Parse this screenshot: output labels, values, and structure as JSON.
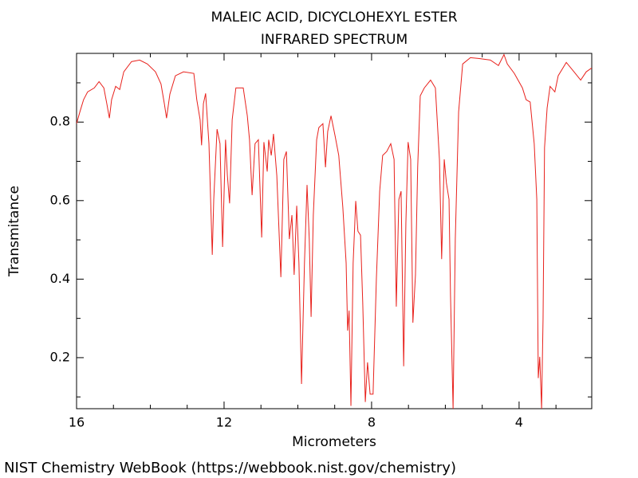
{
  "chart_data": {
    "type": "line",
    "title": "MALEIC ACID, DICYCLOHEXYL ESTER",
    "subtitle": "INFRARED SPECTRUM",
    "xlabel": "Micrometers",
    "ylabel": "Transmitance",
    "color": "#e8211c",
    "xlim": [
      16,
      2.03
    ],
    "ylim": [
      0.07,
      0.975
    ],
    "xticks": [
      16,
      12,
      8,
      4
    ],
    "x_minor_ticks": [
      15,
      14,
      13,
      11,
      10,
      9,
      7,
      6,
      5,
      3
    ],
    "yticks": [
      0.2,
      0.4,
      0.6,
      0.8
    ],
    "y_minor_ticks": [
      0.1,
      0.3,
      0.5,
      0.7,
      0.9
    ],
    "x": [
      16,
      15.91,
      15.81,
      15.7,
      15.52,
      15.39,
      15.26,
      15.18,
      15.11,
      15.05,
      14.94,
      14.83,
      14.72,
      14.51,
      14.29,
      14.08,
      13.86,
      13.71,
      13.62,
      13.56,
      13.47,
      13.32,
      13.1,
      12.82,
      12.74,
      12.65,
      12.61,
      12.56,
      12.5,
      12.41,
      12.32,
      12.28,
      12.19,
      12.11,
      12.04,
      11.96,
      11.91,
      11.85,
      11.78,
      11.68,
      11.48,
      11.37,
      11.31,
      11.24,
      11.16,
      11.07,
      10.98,
      10.92,
      10.83,
      10.79,
      10.72,
      10.66,
      10.57,
      10.46,
      10.38,
      10.31,
      10.23,
      10.16,
      10.1,
      10.03,
      9.97,
      9.9,
      9.82,
      9.75,
      9.69,
      9.64,
      9.58,
      9.49,
      9.43,
      9.32,
      9.25,
      9.19,
      9.1,
      8.99,
      8.89,
      8.78,
      8.69,
      8.65,
      8.61,
      8.56,
      8.5,
      8.43,
      8.37,
      8.3,
      8.24,
      8.17,
      8.11,
      8.04,
      7.96,
      7.87,
      7.78,
      7.7,
      7.59,
      7.48,
      7.39,
      7.33,
      7.26,
      7.2,
      7.13,
      7.07,
      7.01,
      6.94,
      6.88,
      6.81,
      6.75,
      6.68,
      6.57,
      6.4,
      6.27,
      6.16,
      6.1,
      6.03,
      5.97,
      5.9,
      5.86,
      5.79,
      5.73,
      5.64,
      5.53,
      5.32,
      5.1,
      4.78,
      4.56,
      4.41,
      4.32,
      4.13,
      3.91,
      3.81,
      3.7,
      3.59,
      3.52,
      3.48,
      3.44,
      3.39,
      3.35,
      3.31,
      3.24,
      3.16,
      3.03,
      2.94,
      2.72,
      2.51,
      2.33,
      2.18,
      2.03
    ],
    "values": [
      0.796,
      0.826,
      0.857,
      0.877,
      0.887,
      0.903,
      0.887,
      0.847,
      0.81,
      0.857,
      0.891,
      0.883,
      0.928,
      0.954,
      0.958,
      0.948,
      0.928,
      0.897,
      0.847,
      0.81,
      0.871,
      0.918,
      0.928,
      0.924,
      0.857,
      0.806,
      0.741,
      0.847,
      0.873,
      0.745,
      0.462,
      0.603,
      0.782,
      0.745,
      0.482,
      0.755,
      0.664,
      0.593,
      0.806,
      0.887,
      0.887,
      0.816,
      0.755,
      0.614,
      0.745,
      0.755,
      0.506,
      0.749,
      0.674,
      0.755,
      0.715,
      0.77,
      0.664,
      0.405,
      0.705,
      0.725,
      0.502,
      0.563,
      0.411,
      0.587,
      0.441,
      0.133,
      0.441,
      0.64,
      0.502,
      0.304,
      0.563,
      0.755,
      0.786,
      0.796,
      0.685,
      0.776,
      0.816,
      0.765,
      0.715,
      0.583,
      0.441,
      0.269,
      0.32,
      0.077,
      0.441,
      0.599,
      0.522,
      0.512,
      0.34,
      0.087,
      0.188,
      0.107,
      0.107,
      0.401,
      0.624,
      0.715,
      0.725,
      0.745,
      0.705,
      0.33,
      0.603,
      0.624,
      0.178,
      0.543,
      0.749,
      0.705,
      0.289,
      0.411,
      0.685,
      0.867,
      0.887,
      0.907,
      0.887,
      0.705,
      0.451,
      0.705,
      0.644,
      0.603,
      0.36,
      0.07,
      0.502,
      0.826,
      0.948,
      0.964,
      0.962,
      0.958,
      0.944,
      0.972,
      0.948,
      0.924,
      0.887,
      0.857,
      0.851,
      0.745,
      0.603,
      0.148,
      0.202,
      0.07,
      0.3,
      0.735,
      0.836,
      0.891,
      0.877,
      0.918,
      0.952,
      0.928,
      0.907,
      0.928,
      0.938
    ]
  },
  "footer": "NIST Chemistry WebBook (https://webbook.nist.gov/chemistry)"
}
